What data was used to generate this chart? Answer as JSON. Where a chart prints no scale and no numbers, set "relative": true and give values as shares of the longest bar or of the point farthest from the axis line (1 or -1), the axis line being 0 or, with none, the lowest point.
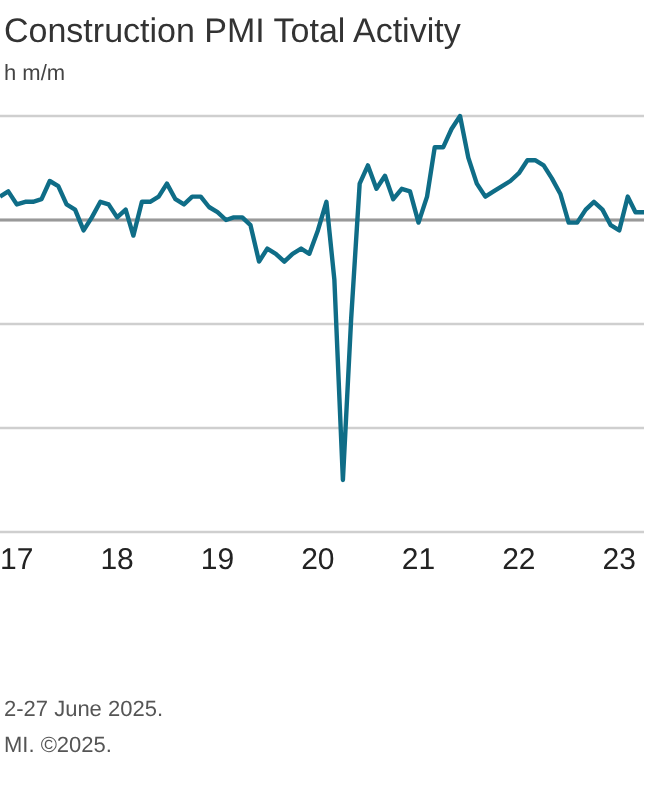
{
  "chart_data": {
    "type": "line",
    "title": "Construction PMI Total Activity",
    "subtitle": "h m/m",
    "relative": true,
    "grid": "y",
    "legend": false,
    "marker": "none",
    "line_style": "solid",
    "annotations": [
      "2-27 June 2025.",
      "MI. ©2025."
    ],
    "xlim": [
      "2016-11",
      "2023-04"
    ],
    "xticks": [
      {
        "value": "2017-01",
        "label": "17"
      },
      {
        "value": "2018-01",
        "label": "18"
      },
      {
        "value": "2019-01",
        "label": "19"
      },
      {
        "value": "2020-01",
        "label": "20"
      },
      {
        "value": "2021-01",
        "label": "21"
      },
      {
        "value": "2022-01",
        "label": "22"
      },
      {
        "value": "2023-01",
        "label": "23"
      }
    ],
    "x": [
      "2016-11",
      "2016-12",
      "2017-01",
      "2017-02",
      "2017-03",
      "2017-04",
      "2017-05",
      "2017-06",
      "2017-07",
      "2017-08",
      "2017-09",
      "2017-10",
      "2017-11",
      "2017-12",
      "2018-01",
      "2018-02",
      "2018-03",
      "2018-04",
      "2018-05",
      "2018-06",
      "2018-07",
      "2018-08",
      "2018-09",
      "2018-10",
      "2018-11",
      "2018-12",
      "2019-01",
      "2019-02",
      "2019-03",
      "2019-04",
      "2019-05",
      "2019-06",
      "2019-07",
      "2019-08",
      "2019-09",
      "2019-10",
      "2019-11",
      "2019-12",
      "2020-01",
      "2020-02",
      "2020-03",
      "2020-04",
      "2020-05",
      "2020-06",
      "2020-07",
      "2020-08",
      "2020-09",
      "2020-10",
      "2020-11",
      "2020-12",
      "2021-01",
      "2021-02",
      "2021-03",
      "2021-04",
      "2021-05",
      "2021-06",
      "2021-07",
      "2021-08",
      "2021-09",
      "2021-10",
      "2021-11",
      "2021-12",
      "2022-01",
      "2022-02",
      "2022-03",
      "2022-04",
      "2022-05",
      "2022-06",
      "2022-07",
      "2022-08",
      "2022-09",
      "2022-10",
      "2022-11",
      "2022-12",
      "2023-01",
      "2023-02",
      "2023-03",
      "2023-04"
    ],
    "series": [
      {
        "color": "#0f6d87",
        "values": [
          0.09,
          0.11,
          0.06,
          0.07,
          0.07,
          0.08,
          0.15,
          0.13,
          0.06,
          0.04,
          -0.04,
          0.01,
          0.07,
          0.06,
          0.01,
          0.04,
          -0.06,
          0.07,
          0.07,
          0.09,
          0.14,
          0.08,
          0.06,
          0.09,
          0.09,
          0.05,
          0.03,
          0,
          0.01,
          0.01,
          -0.02,
          -0.16,
          -0.11,
          -0.13,
          -0.16,
          -0.13,
          -0.11,
          -0.13,
          -0.04,
          0.07,
          -0.23,
          -1,
          -0.38,
          0.14,
          0.21,
          0.12,
          0.17,
          0.08,
          0.12,
          0.11,
          -0.01,
          0.09,
          0.28,
          0.28,
          0.35,
          0.4,
          0.24,
          0.14,
          0.09,
          0.11,
          0.13,
          0.15,
          0.18,
          0.23,
          0.23,
          0.21,
          0.16,
          0.1,
          -0.01,
          -0.01,
          0.04,
          0.07,
          0.04,
          -0.02,
          -0.04,
          0.09,
          0.03,
          0.03
        ]
      }
    ]
  }
}
